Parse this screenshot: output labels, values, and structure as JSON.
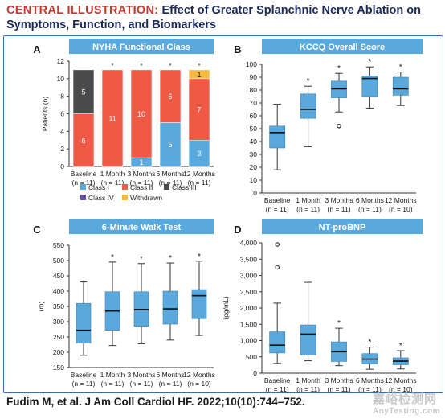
{
  "figure": {
    "title_lead": "CENTRAL ILLUSTRATION:",
    "title_rest": " Effect of Greater Splanchnic Nerve Ablation on Symptoms, Function, and Biomarkers",
    "citation": "Fudim M, et al. J Am Coll Cardiol HF. 2022;10(10):744–752.",
    "watermark_cn": "嘉峪检测网",
    "watermark_en": "AnyTesting.com"
  },
  "colors": {
    "class1": "#5aa9dd",
    "class2": "#ee5a46",
    "class3": "#4a4a4a",
    "class4": "#6a4fa0",
    "withdrawn": "#f5b942",
    "box": "#5aa9dd",
    "panel_header": "#5aa9dd",
    "star": "#1a1a1a"
  },
  "chart_data": [
    {
      "panel": "A",
      "type": "bar",
      "stacked": true,
      "title": "NYHA Functional Class",
      "ylabel": "Patients (n)",
      "ylim": [
        0,
        12
      ],
      "yticks": [
        0,
        2,
        4,
        6,
        8,
        10,
        12
      ],
      "categories": [
        "Baseline\n(n = 11)",
        "1 Month\n(n = 11)",
        "3 Months\n(n = 11)",
        "6 Months\n(n = 11)",
        "12 Months\n(n = 11)"
      ],
      "significant": [
        false,
        true,
        true,
        true,
        true
      ],
      "series": [
        {
          "name": "Class I",
          "color_key": "class1",
          "values": [
            0,
            0,
            1,
            5,
            3
          ]
        },
        {
          "name": "Class II",
          "color_key": "class2",
          "values": [
            6,
            11,
            10,
            6,
            7
          ]
        },
        {
          "name": "Class III",
          "color_key": "class3",
          "values": [
            5,
            0,
            0,
            0,
            0
          ]
        },
        {
          "name": "Class IV",
          "color_key": "class4",
          "values": [
            0,
            0,
            0,
            0,
            0
          ]
        },
        {
          "name": "Withdrawn",
          "color_key": "withdrawn",
          "values": [
            0,
            0,
            0,
            0,
            1
          ]
        }
      ],
      "legend_order": [
        "Class I",
        "Class II",
        "Class III",
        "Class IV",
        "Withdrawn"
      ],
      "legend": "bottom"
    },
    {
      "panel": "B",
      "type": "box",
      "title": "KCCQ Overall Score",
      "ylabel": "",
      "ylim": [
        0,
        100
      ],
      "yticks": [
        0,
        10,
        20,
        30,
        40,
        50,
        60,
        70,
        80,
        90,
        100
      ],
      "categories": [
        "Baseline\n(n = 11)",
        "1 Month\n(n = 11)",
        "3 Months\n(n = 11)",
        "6 Months\n(n = 11)",
        "12 Months\n(n = 10)"
      ],
      "significant": [
        false,
        true,
        true,
        true,
        true
      ],
      "boxes": [
        {
          "min": 18,
          "q1": 35,
          "median": 47,
          "q3": 52,
          "max": 69,
          "outliers": []
        },
        {
          "min": 36,
          "q1": 58,
          "median": 65,
          "q3": 77,
          "max": 83,
          "outliers": []
        },
        {
          "min": 63,
          "q1": 74,
          "median": 81,
          "q3": 87,
          "max": 93,
          "outliers": [
            52
          ]
        },
        {
          "min": 66,
          "q1": 75,
          "median": 89,
          "q3": 91,
          "max": 98,
          "outliers": []
        },
        {
          "min": 68,
          "q1": 76,
          "median": 81,
          "q3": 90,
          "max": 94,
          "outliers": []
        }
      ]
    },
    {
      "panel": "C",
      "type": "box",
      "title": "6-Minute Walk Test",
      "ylabel": "(m)",
      "ylim": [
        150,
        550
      ],
      "yticks": [
        150,
        200,
        250,
        300,
        350,
        400,
        450,
        500,
        550
      ],
      "categories": [
        "Baseline\n(n = 11)",
        "1 Month\n(n = 11)",
        "3 Months\n(n = 11)",
        "6 Months\n(n = 11)",
        "12 Months\n(n = 10)"
      ],
      "significant": [
        false,
        true,
        true,
        true,
        true
      ],
      "boxes": [
        {
          "min": 190,
          "q1": 230,
          "median": 272,
          "q3": 360,
          "max": 430,
          "outliers": []
        },
        {
          "min": 222,
          "q1": 272,
          "median": 335,
          "q3": 398,
          "max": 495,
          "outliers": []
        },
        {
          "min": 228,
          "q1": 285,
          "median": 340,
          "q3": 398,
          "max": 490,
          "outliers": []
        },
        {
          "min": 240,
          "q1": 292,
          "median": 342,
          "q3": 400,
          "max": 492,
          "outliers": []
        },
        {
          "min": 255,
          "q1": 310,
          "median": 385,
          "q3": 405,
          "max": 498,
          "outliers": []
        }
      ]
    },
    {
      "panel": "D",
      "type": "box",
      "title": "NT-proBNP",
      "ylabel": "(pg/mL)",
      "ylim": [
        0,
        4000
      ],
      "yticks": [
        0,
        500,
        1000,
        1500,
        2000,
        2500,
        3000,
        3500,
        4000
      ],
      "ytick_labels": [
        "0",
        "500",
        "1,000",
        "1,500",
        "2,000",
        "2,500",
        "3,000",
        "3,500",
        "4,000"
      ],
      "categories": [
        "Baseline\n(n = 11)",
        "1 Month\n(n = 11)",
        "3 Months\n(n = 11)",
        "6 Months\n(n = 11)",
        "12 Months\n(n = 10)"
      ],
      "significant": [
        false,
        false,
        true,
        true,
        true
      ],
      "boxes": [
        {
          "min": 300,
          "q1": 620,
          "median": 860,
          "q3": 1270,
          "max": 2150,
          "outliers": [
            3950,
            3250
          ]
        },
        {
          "min": 380,
          "q1": 560,
          "median": 1200,
          "q3": 1480,
          "max": 2790,
          "outliers": []
        },
        {
          "min": 230,
          "q1": 360,
          "median": 660,
          "q3": 960,
          "max": 1380,
          "outliers": []
        },
        {
          "min": 120,
          "q1": 290,
          "median": 430,
          "q3": 600,
          "max": 800,
          "outliers": []
        },
        {
          "min": 130,
          "q1": 260,
          "median": 370,
          "q3": 470,
          "max": 690,
          "outliers": []
        }
      ]
    }
  ]
}
